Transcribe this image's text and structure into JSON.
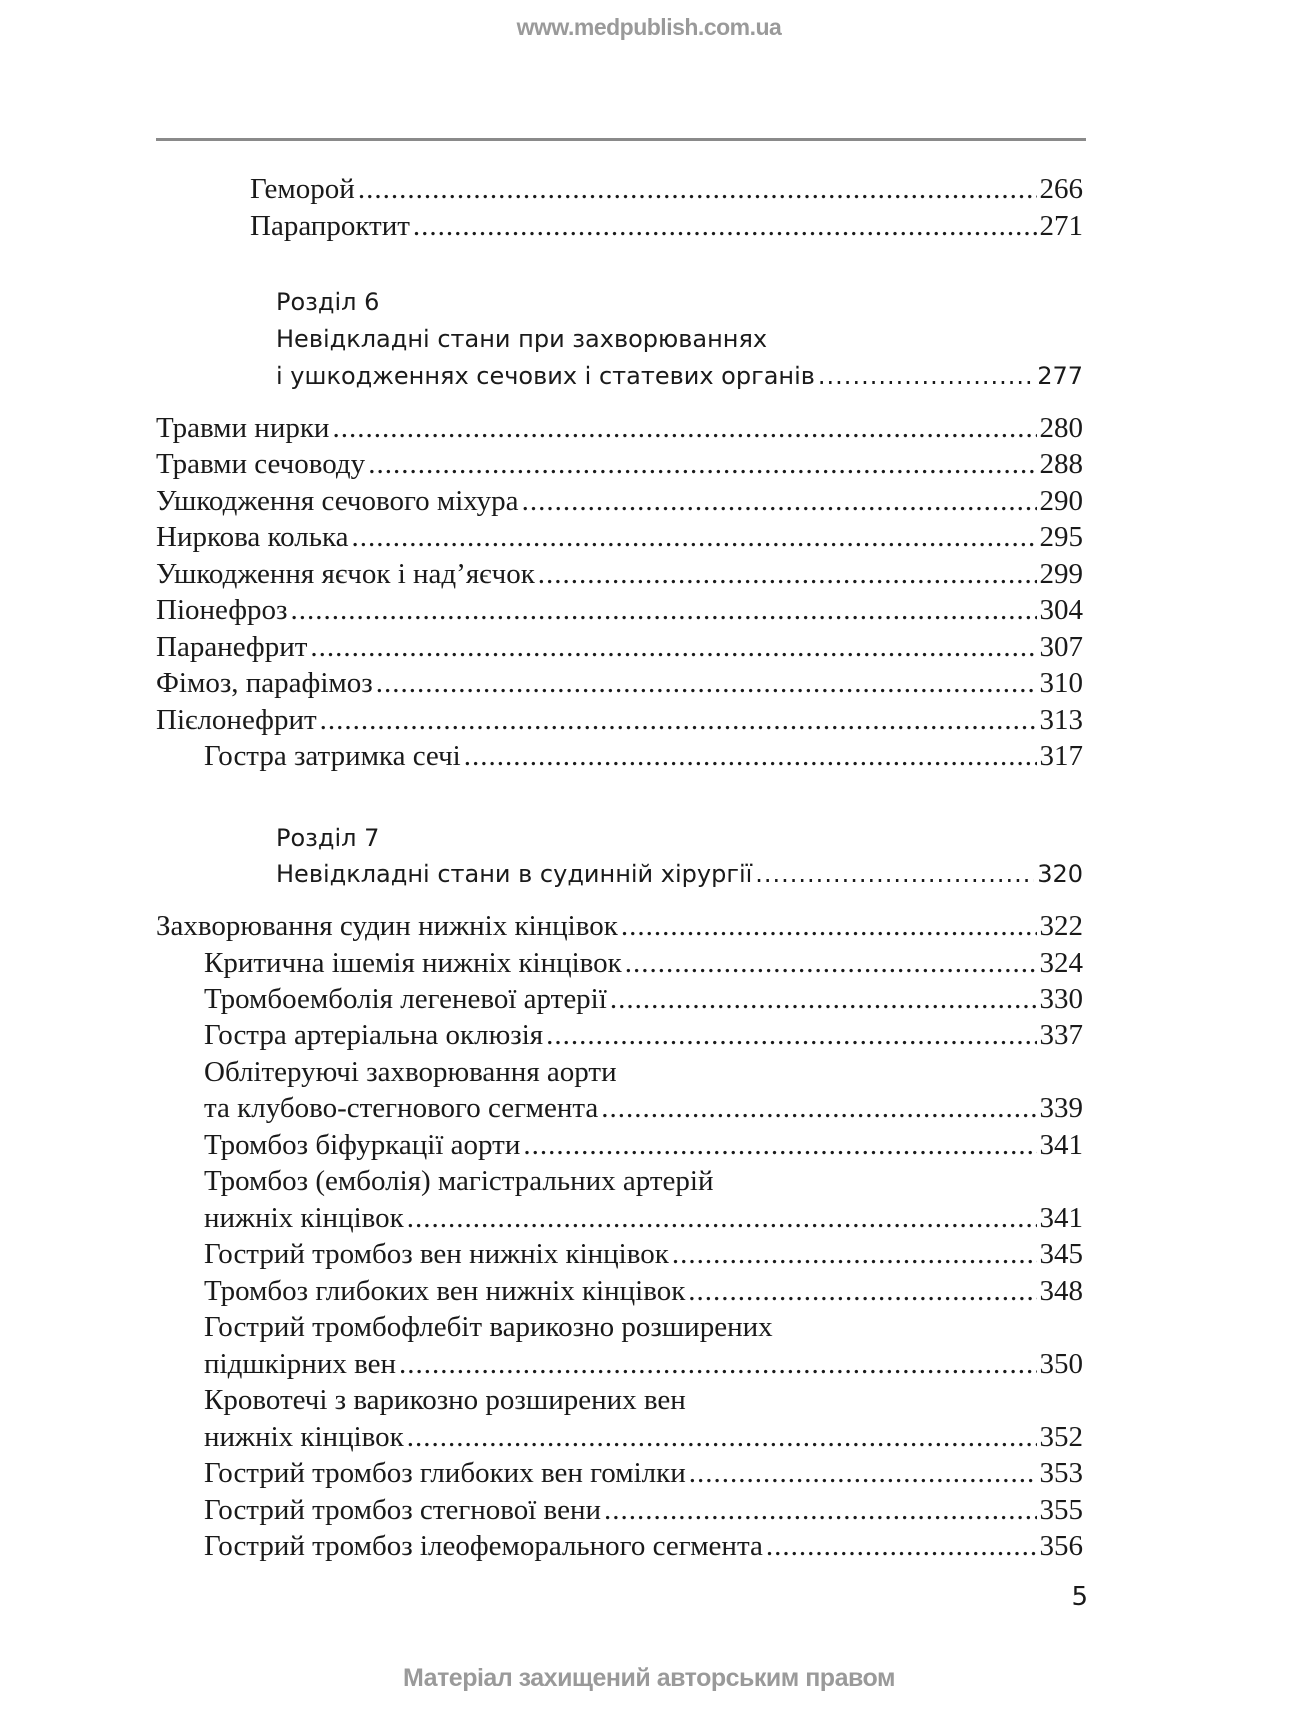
{
  "watermark_top": "www.medpublish.com.ua",
  "watermark_bottom": "Матеріал захищений авторським правом",
  "page_number": "5",
  "entries": [
    {
      "title": "Геморой",
      "page": "266"
    },
    {
      "title": "Парапроктит",
      "page": "271"
    },
    {
      "title": "Травми нирки",
      "page": "280"
    },
    {
      "title": "Травми сечоводу",
      "page": "288"
    },
    {
      "title": "Ушкодження сечового міхура",
      "page": "290"
    },
    {
      "title": "Ниркова колька",
      "page": "295"
    },
    {
      "title": "Ушкодження яєчок і над’яєчок",
      "page": "299"
    },
    {
      "title": "Піонефроз",
      "page": "304"
    },
    {
      "title": "Паранефрит",
      "page": "307"
    },
    {
      "title": "Фімоз, парафімоз",
      "page": "310"
    },
    {
      "title": "Пієлонефрит",
      "page": "313"
    },
    {
      "title": "Гостра затримка сечі",
      "page": "317"
    },
    {
      "title": "Захворювання судин нижніх кінцівок",
      "page": "322"
    },
    {
      "title": "Критична ішемія нижніх кінцівок",
      "page": "324"
    },
    {
      "title": "Тромбоемболія легеневої артерії",
      "page": "330"
    },
    {
      "title": "Гостра артеріальна оклюзія",
      "page": "337"
    },
    {
      "title_line1": "Облітеруючі захворювання аорти",
      "title": "та клубово-стегнового сегмента",
      "page": "339"
    },
    {
      "title": "Тромбоз біфуркації аорти",
      "page": "341"
    },
    {
      "title_line1": "Тромбоз (емболія) магістральних артерій",
      "title": "нижніх кінцівок",
      "page": "341"
    },
    {
      "title": "Гострий тромбоз вен нижніх кінцівок",
      "page": "345"
    },
    {
      "title": "Тромбоз глибоких вен нижніх кінцівок",
      "page": "348"
    },
    {
      "title_line1": "Гострий тромбофлебіт варикозно розширених",
      "title": "підшкірних вен",
      "page": "350"
    },
    {
      "title_line1": "Кровотечі з варикозно розширених вен",
      "title": "нижніх кінцівок",
      "page": "352"
    },
    {
      "title": "Гострий тромбоз глибоких вен гомілки",
      "page": "353"
    },
    {
      "title": "Гострий тромбоз стегнової вени",
      "page": "355"
    },
    {
      "title": "Гострий тромбоз ілеофеморального сегмента",
      "page": "356"
    }
  ],
  "sections": [
    {
      "label": "Розділ 6",
      "title_line1": "Невідкладні стани при захворюваннях",
      "title": "і ушкодженнях сечових і статевих органів",
      "page": "277"
    },
    {
      "label": "Розділ 7",
      "title": "Невідкладні стани в судинній хірургії",
      "page": "320"
    }
  ]
}
